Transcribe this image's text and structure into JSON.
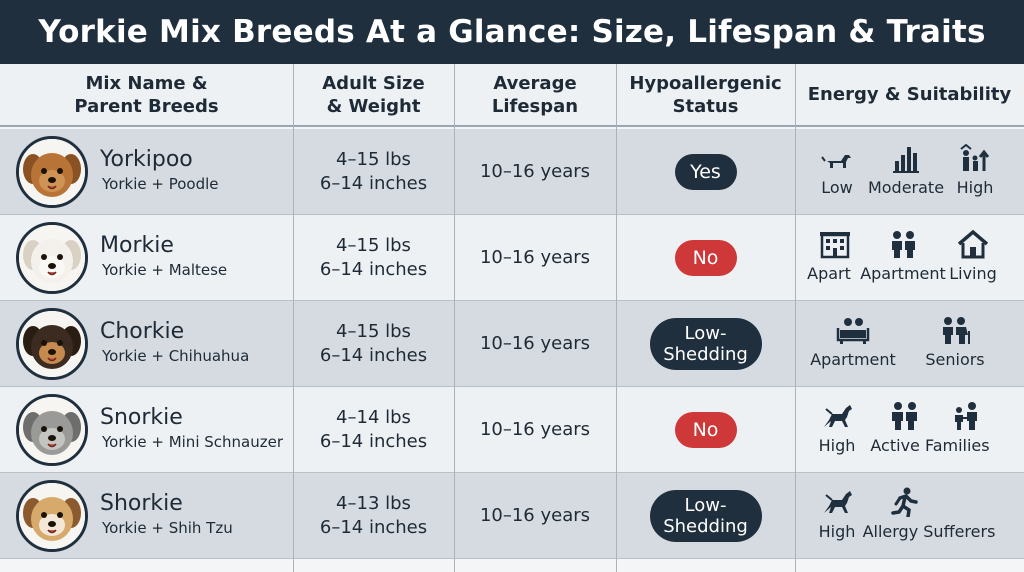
{
  "title": "Yorkie Mix Breeds At a Glance: Size, Lifespan & Traits",
  "headers": {
    "col1": [
      "Mix Name &",
      "Parent Breeds"
    ],
    "col2": [
      "Adult Size",
      "& Weight"
    ],
    "col3": [
      "Average",
      "Lifespan"
    ],
    "col4": [
      "Hypoallergenic",
      "Status"
    ],
    "col5": [
      "Energy & Suitability"
    ]
  },
  "rows": [
    {
      "name": "Yorkipoo",
      "parents": "Yorkie + Poodle",
      "weight": "4–15 lbs",
      "height": "6–14 inches",
      "lifespan": "10–16 years",
      "status": [
        "Yes"
      ],
      "status_type": "yes",
      "icons": [
        {
          "icon": "small-dog-icon",
          "label": "Low"
        },
        {
          "icon": "bar-chart-icon",
          "label": "Moderate"
        },
        {
          "icon": "family-growth-icon",
          "label": "High"
        }
      ]
    },
    {
      "name": "Morkie",
      "parents": "Yorkie + Maltese",
      "weight": "4–15 lbs",
      "height": "6–14 inches",
      "lifespan": "10–16 years",
      "status": [
        "No"
      ],
      "status_type": "no",
      "icons": [
        {
          "icon": "apartment-building-icon",
          "label": "Apart"
        },
        {
          "icon": "two-people-icon",
          "label": "Apartment"
        },
        {
          "icon": "house-icon",
          "label": "Living"
        }
      ]
    },
    {
      "name": "Chorkie",
      "parents": "Yorkie + Chihuahua",
      "weight": "4–15 lbs",
      "height": "6–14 inches",
      "lifespan": "10–16 years",
      "status": [
        "Low-",
        "Shedding"
      ],
      "status_type": "low",
      "icons": [
        {
          "icon": "people-couch-icon",
          "label": "Apartment"
        },
        {
          "icon": "seniors-icon",
          "label": "Seniors"
        }
      ]
    },
    {
      "name": "Snorkie",
      "parents": "Yorkie + Mini Schnauzer",
      "weight": "4–14 lbs",
      "height": "6–14 inches",
      "lifespan": "10–16 years",
      "status": [
        "No"
      ],
      "status_type": "no",
      "icons": [
        {
          "icon": "jumping-dog-icon",
          "label": "High"
        },
        {
          "icon": "active-family-icon",
          "label": "Active Families"
        },
        {
          "icon": "family-icon",
          "label": ""
        }
      ]
    },
    {
      "name": "Shorkie",
      "parents": "Yorkie + Shih Tzu",
      "weight": "4–13 lbs",
      "height": "6–14 inches",
      "lifespan": "10–16 years",
      "status": [
        "Low-",
        "Shedding"
      ],
      "status_type": "low",
      "icons": [
        {
          "icon": "jumping-dog-icon",
          "label": "High"
        },
        {
          "icon": "running-person-icon",
          "label": "Allergy Sufferers"
        }
      ]
    }
  ],
  "colors": {
    "title_bg": "#1f2f3e",
    "dark_row": "#d5dbe1",
    "light_row": "#eef1f4",
    "pill_dark": "#1f2f3e",
    "pill_red": "#cf3838"
  }
}
